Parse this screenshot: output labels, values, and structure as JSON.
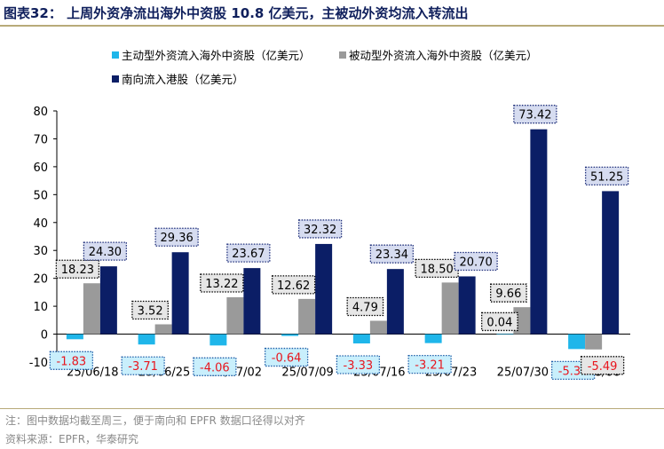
{
  "title": "图表32：  上周外资净流出海外中资股 10.8 亿美元，主被动外资均流入转流出",
  "notes": {
    "note": "注：图中数据均截至周三，便于南向和 EPFR 数据口径得以对齐",
    "source": "资料来源：EPFR，华泰研究"
  },
  "chart_data": {
    "type": "bar",
    "categories": [
      "25/06/18",
      "25/06/25",
      "25/07/02",
      "25/07/09",
      "25/07/16",
      "25/07/23",
      "25/07/30",
      "25/08/06"
    ],
    "series": [
      {
        "name": "主动型外资流入海外中资股（亿美元）",
        "color": "#1fb6ea",
        "values": [
          -1.83,
          -3.71,
          -4.06,
          -0.64,
          -3.33,
          -3.21,
          0.04,
          -5.34
        ],
        "labels": [
          "-1.83",
          "-3.71",
          "-4.06",
          "-0.64",
          "-3.33",
          "-3.21",
          "0.04",
          "-5.34"
        ]
      },
      {
        "name": "被动型外资流入海外中资股（亿美元）",
        "color": "#9a9a9a",
        "values": [
          18.23,
          3.52,
          13.22,
          12.62,
          4.79,
          18.5,
          9.66,
          -5.49
        ],
        "labels": [
          "18.23",
          "3.52",
          "13.22",
          "12.62",
          "4.79",
          "18.50",
          "9.66",
          "-5.49"
        ]
      },
      {
        "name": "南向流入港股（亿美元）",
        "color": "#0b1e66",
        "values": [
          24.3,
          29.36,
          23.67,
          32.32,
          23.34,
          20.7,
          73.42,
          51.25
        ],
        "labels": [
          "24.30",
          "29.36",
          "23.67",
          "32.32",
          "23.34",
          "20.70",
          "73.42",
          "51.25"
        ]
      }
    ],
    "yticks": [
      -10,
      0,
      10,
      20,
      30,
      40,
      50,
      60,
      70,
      80
    ],
    "ylim": [
      -10,
      80
    ],
    "grid": false,
    "legend_position": "top-left",
    "label_styles": {
      "positive": {
        "fill": "#e6e6e6",
        "text": "#000000",
        "border": "#000000"
      },
      "active_negative": {
        "fill": "#c9effc",
        "text": "#e8151d",
        "border": "#1f5fa8"
      },
      "passive_negative": {
        "fill": "#e6e6e6",
        "text": "#e8151d",
        "border": "#000000"
      },
      "southbound": {
        "fill": "#d6dcf0",
        "text": "#000000",
        "border": "#1f2f7a"
      }
    }
  }
}
